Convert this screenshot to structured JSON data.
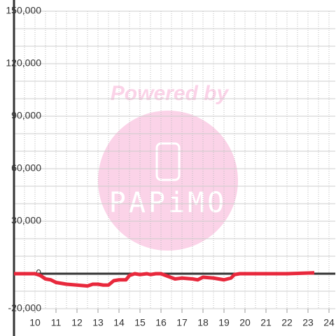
{
  "chart_data": {
    "type": "line",
    "watermark": [
      "Powered by",
      "PAPiMO"
    ],
    "x": [
      9,
      9.5,
      10,
      10.25,
      10.5,
      10.75,
      11,
      11.25,
      11.5,
      12,
      12.5,
      12.75,
      13,
      13.25,
      13.5,
      13.75,
      14,
      14.33,
      14.5,
      14.75,
      15,
      15.33,
      15.5,
      15.75,
      16,
      16.33,
      16.67,
      17,
      17.5,
      17.75,
      18,
      18.5,
      19,
      19.33,
      19.5,
      19.75,
      20,
      21,
      22,
      23.3
    ],
    "series": [
      {
        "color": "#e8283c",
        "values": [
          0,
          0,
          0,
          -1000,
          -3000,
          -3500,
          -5000,
          -5500,
          -6000,
          -6500,
          -7000,
          -6000,
          -6000,
          -6500,
          -6500,
          -4000,
          -3500,
          -3500,
          -1000,
          0,
          -500,
          0,
          -500,
          0,
          0,
          -1500,
          -3000,
          -2500,
          -3000,
          -3500,
          -2000,
          -2500,
          -3500,
          -2500,
          -500,
          0,
          0,
          0,
          0,
          500
        ]
      }
    ],
    "xlim": [
      9,
      24.3
    ],
    "xticks": [
      10,
      11,
      12,
      13,
      14,
      15,
      16,
      17,
      18,
      19,
      20,
      21,
      22,
      23,
      24
    ],
    "xgrid": [
      9.5,
      10,
      10.5,
      11,
      11.5,
      12,
      12.5,
      13,
      13.5,
      14,
      14.5,
      15,
      15.5,
      16,
      16.5,
      17,
      17.5,
      18,
      18.5,
      19,
      19.5,
      20,
      20.5,
      21,
      21.5,
      22,
      22.5,
      23,
      23.5,
      24
    ],
    "ylim": [
      -20000,
      150000
    ],
    "yticks": [
      {
        "value": -20000,
        "label": "-20,000"
      },
      0,
      {
        "value": 30000,
        "label": "30,000"
      },
      {
        "value": 60000,
        "label": "60,000"
      },
      {
        "value": 90000,
        "label": "90,000"
      },
      {
        "value": 120000,
        "label": "120,000"
      },
      {
        "value": 150000,
        "label": "150,000"
      }
    ],
    "ygrid": [
      -10000,
      10000,
      20000,
      40000,
      50000,
      70000,
      80000,
      100000,
      110000,
      130000,
      140000
    ],
    "grid": true
  }
}
